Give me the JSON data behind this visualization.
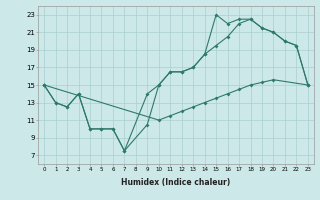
{
  "xlabel": "Humidex (Indice chaleur)",
  "bg_color": "#cde8e8",
  "grid_color": "#aacfcf",
  "line_color": "#2d7a6a",
  "xlim": [
    -0.5,
    23.5
  ],
  "ylim": [
    6.0,
    24.0
  ],
  "xticks": [
    0,
    1,
    2,
    3,
    4,
    5,
    6,
    7,
    8,
    9,
    10,
    11,
    12,
    13,
    14,
    15,
    16,
    17,
    18,
    19,
    20,
    21,
    22,
    23
  ],
  "yticks": [
    7,
    9,
    11,
    13,
    15,
    17,
    19,
    21,
    23
  ],
  "line1_x": [
    0,
    1,
    2,
    3,
    4,
    5,
    6,
    7,
    9,
    10,
    11,
    12,
    13,
    14,
    15,
    16,
    17,
    18,
    19,
    20,
    21,
    22,
    23
  ],
  "line1_y": [
    15,
    13,
    12.5,
    14,
    10,
    10,
    10,
    7.5,
    14,
    15,
    16.5,
    16.5,
    17,
    18.5,
    23,
    22,
    22.5,
    22.5,
    21.5,
    21,
    20,
    19.5,
    15
  ],
  "line2_x": [
    0,
    1,
    2,
    3,
    4,
    5,
    6,
    7,
    9,
    10,
    11,
    12,
    13,
    14,
    15,
    16,
    17,
    18,
    19,
    20,
    21,
    22,
    23
  ],
  "line2_y": [
    15,
    13,
    12.5,
    14,
    10,
    10,
    10,
    7.5,
    10.5,
    15,
    16.5,
    16.5,
    17,
    18.5,
    19.5,
    20.5,
    22,
    22.5,
    21.5,
    21,
    20,
    19.5,
    15
  ],
  "line3_x": [
    0,
    10,
    11,
    12,
    13,
    14,
    15,
    16,
    17,
    18,
    19,
    20,
    23
  ],
  "line3_y": [
    15,
    11,
    11.5,
    12,
    12.5,
    13,
    13.5,
    14,
    14.5,
    15,
    15.3,
    15.6,
    15
  ]
}
